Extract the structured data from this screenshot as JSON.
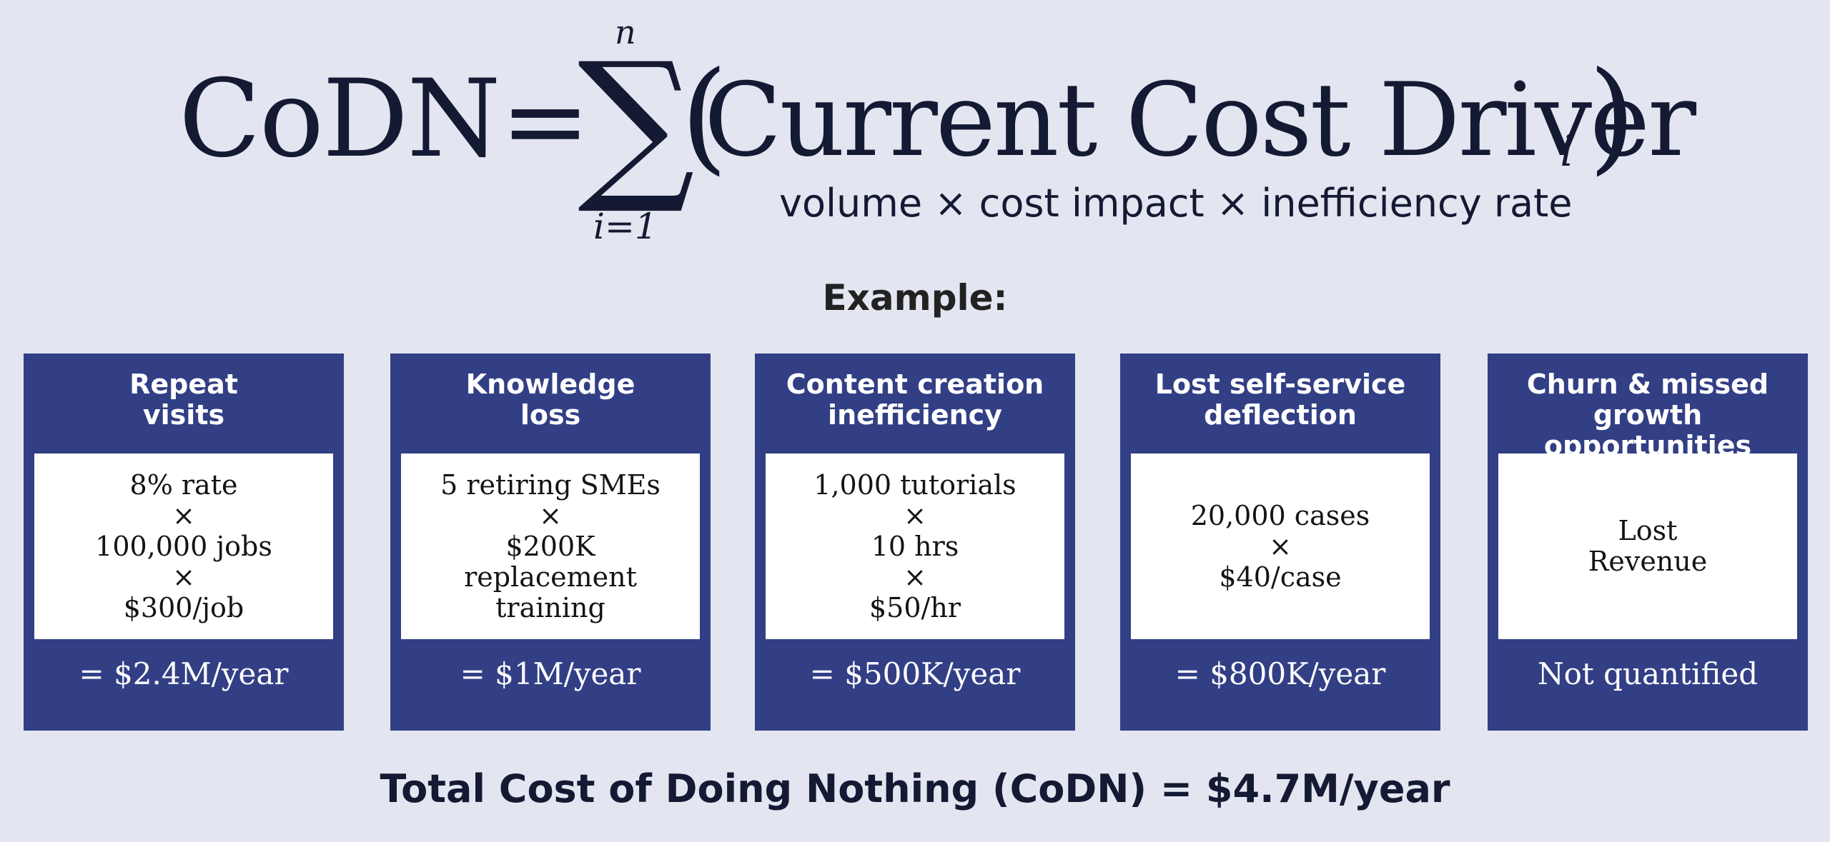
{
  "formula": {
    "lhs": "CoDN",
    "equals": "=",
    "sum_symbol": "∑",
    "sum_upper": "n",
    "sum_lower": "i=1",
    "open_paren": "(",
    "term": "Current Cost Driver",
    "term_subscript": "i",
    "close_paren": ")",
    "note": "volume × cost impact × inefficiency rate"
  },
  "example_label": "Example:",
  "cards": [
    {
      "title": [
        "Repeat",
        "visits"
      ],
      "lines": [
        "8% rate",
        "×",
        "100,000 jobs",
        "×",
        "$300/job"
      ],
      "result": "= $2.4M/year"
    },
    {
      "title": [
        "Knowledge",
        "loss"
      ],
      "lines": [
        "5 retiring SMEs",
        "×",
        "$200K",
        "replacement",
        "training"
      ],
      "result": "= $1M/year"
    },
    {
      "title": [
        "Content creation",
        "inefficiency"
      ],
      "lines": [
        "1,000 tutorials",
        "×",
        "10 hrs",
        "×",
        "$50/hr"
      ],
      "result": "= $500K/year"
    },
    {
      "title": [
        "Lost self-service",
        "deflection"
      ],
      "lines": [
        "20,000 cases",
        "×",
        "$40/case"
      ],
      "result": "= $800K/year"
    },
    {
      "title": [
        "Churn & missed",
        "growth opportunities"
      ],
      "lines": [
        "Lost",
        "Revenue"
      ],
      "result": "Not quantified"
    }
  ],
  "total": "Total Cost of Doing Nothing (CoDN) = $4.7M/year",
  "colors": {
    "background": "#e3e6f0",
    "card": "#323f85",
    "text_dark": "#141a33"
  }
}
